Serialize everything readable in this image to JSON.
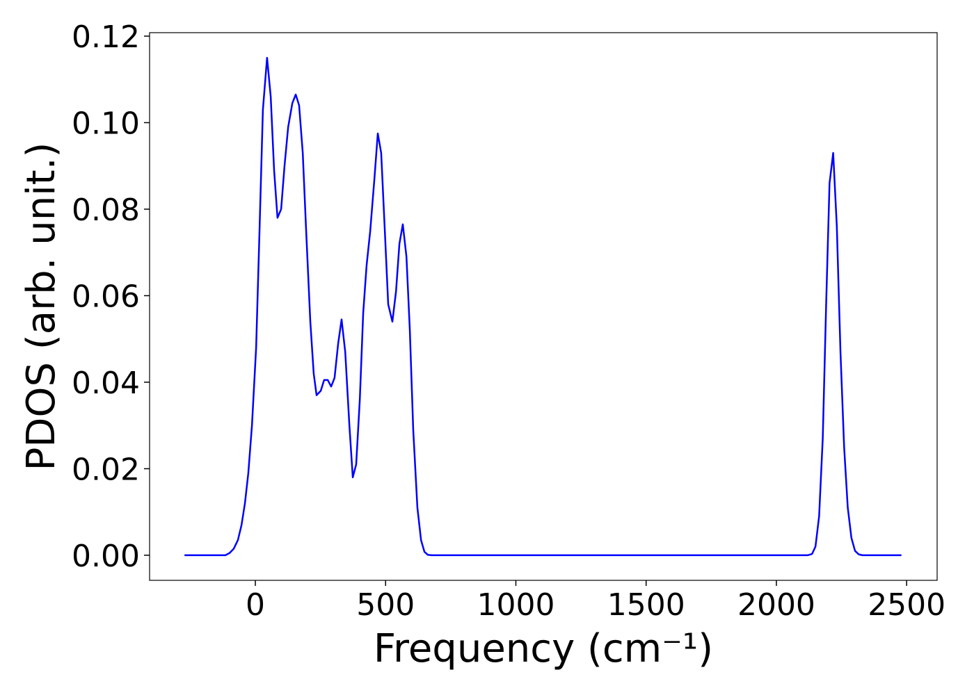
{
  "chart_data": {
    "type": "line",
    "xlabel": "Frequency (cm⁻¹)",
    "ylabel": "PDOS (arb. unit.)",
    "xlim": [
      -406,
      2617
    ],
    "ylim": [
      -0.0058,
      0.1208
    ],
    "xticks": [
      0,
      500,
      1000,
      1500,
      2000,
      2500
    ],
    "yticks": [
      {
        "value": 0,
        "label": "0.00"
      },
      0.02,
      0.04,
      0.06,
      0.08,
      {
        "value": 0.1,
        "label": "0.10"
      },
      0.12
    ],
    "grid": false,
    "series": [
      {
        "color": "#0000ff",
        "x": [
          -272,
          -115,
          -99,
          -83,
          -67,
          -53,
          -40,
          -27,
          -13,
          3,
          16,
          29,
          45,
          59,
          72,
          85,
          99,
          112,
          126,
          142,
          155,
          168,
          182,
          195,
          211,
          224,
          235,
          251,
          264,
          278,
          291,
          304,
          318,
          331,
          345,
          361,
          374,
          387,
          401,
          414,
          427,
          441,
          457,
          470,
          483,
          497,
          510,
          526,
          540,
          553,
          566,
          580,
          593,
          606,
          622,
          636,
          649,
          662,
          676,
          2120,
          2137,
          2150,
          2164,
          2178,
          2191,
          2204,
          2218,
          2232,
          2246,
          2260,
          2274,
          2288,
          2302,
          2316,
          2330,
          2480
        ],
        "values": [
          0,
          0,
          0.0005,
          0.0015,
          0.0035,
          0.007,
          0.012,
          0.019,
          0.03,
          0.048,
          0.075,
          0.103,
          0.115,
          0.106,
          0.089,
          0.078,
          0.08,
          0.09,
          0.099,
          0.1045,
          0.1065,
          0.104,
          0.093,
          0.075,
          0.054,
          0.042,
          0.037,
          0.038,
          0.0405,
          0.0405,
          0.039,
          0.041,
          0.049,
          0.0545,
          0.047,
          0.03,
          0.018,
          0.021,
          0.036,
          0.056,
          0.067,
          0.075,
          0.087,
          0.0975,
          0.093,
          0.075,
          0.058,
          0.054,
          0.061,
          0.072,
          0.0765,
          0.069,
          0.052,
          0.029,
          0.011,
          0.0035,
          0.0008,
          0.0001,
          0,
          0,
          0.0003,
          0.002,
          0.009,
          0.027,
          0.058,
          0.086,
          0.093,
          0.076,
          0.047,
          0.025,
          0.011,
          0.004,
          0.001,
          0.0002,
          0,
          0
        ]
      }
    ]
  }
}
